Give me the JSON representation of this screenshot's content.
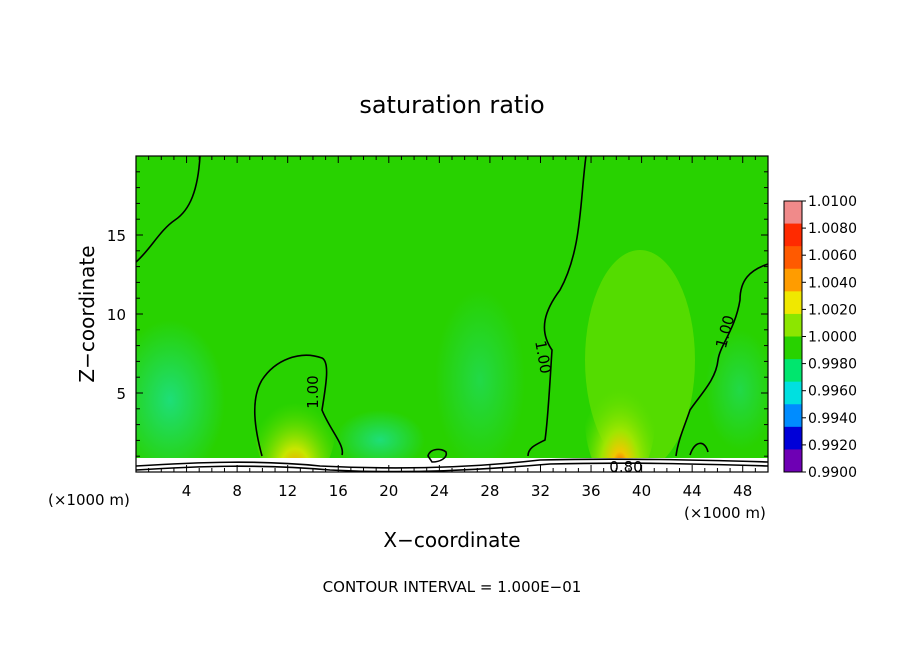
{
  "chart_data": {
    "type": "heatmap",
    "title": "saturation ratio",
    "xlabel": "X−coordinate",
    "ylabel": "Z−coordinate",
    "x_unit_left": "(×1000 m)",
    "x_unit_right": "(×1000 m)",
    "footer": "CONTOUR INTERVAL = 1.000E−01",
    "xlim": [
      0,
      50
    ],
    "ylim": [
      0,
      20
    ],
    "x_ticks": [
      "4",
      "8",
      "12",
      "16",
      "20",
      "24",
      "28",
      "32",
      "36",
      "40",
      "44",
      "48"
    ],
    "y_ticks": [
      "5",
      "10",
      "15"
    ],
    "x_tick_values": [
      4,
      8,
      12,
      16,
      20,
      24,
      28,
      32,
      36,
      40,
      44,
      48
    ],
    "y_tick_values": [
      5,
      10,
      15
    ],
    "colorbar": {
      "labels": [
        "1.0100",
        "1.0080",
        "1.0060",
        "1.0040",
        "1.0020",
        "1.0000",
        "0.9980",
        "0.9960",
        "0.9940",
        "0.9920",
        "0.9900"
      ],
      "colors": [
        "#f08a8a",
        "#ff2a00",
        "#ff5a00",
        "#ff9c00",
        "#f0e800",
        "#8ce600",
        "#28d200",
        "#00e66e",
        "#00e0e0",
        "#008cff",
        "#0000d8",
        "#6e00b4"
      ]
    },
    "contour_labels": [
      {
        "text": "1.00",
        "x": 14,
        "z": 5
      },
      {
        "text": "1.00",
        "x": 31.5,
        "z": 7
      },
      {
        "text": "1.00",
        "x": 45.3,
        "z": 9
      },
      {
        "text": "0.80",
        "x": 39.2,
        "z": 0.6
      }
    ],
    "background_value": 1.0,
    "features": [
      {
        "name": "moist plume near x=13",
        "x": 13,
        "z_top": 7.5,
        "max_value": 1.004
      },
      {
        "name": "moist plume near x=38",
        "x": 38,
        "z_top": 8,
        "max_value": 1.006
      },
      {
        "name": "dry surface layer",
        "z_max": 0.8,
        "min_value": 0.8
      }
    ]
  }
}
